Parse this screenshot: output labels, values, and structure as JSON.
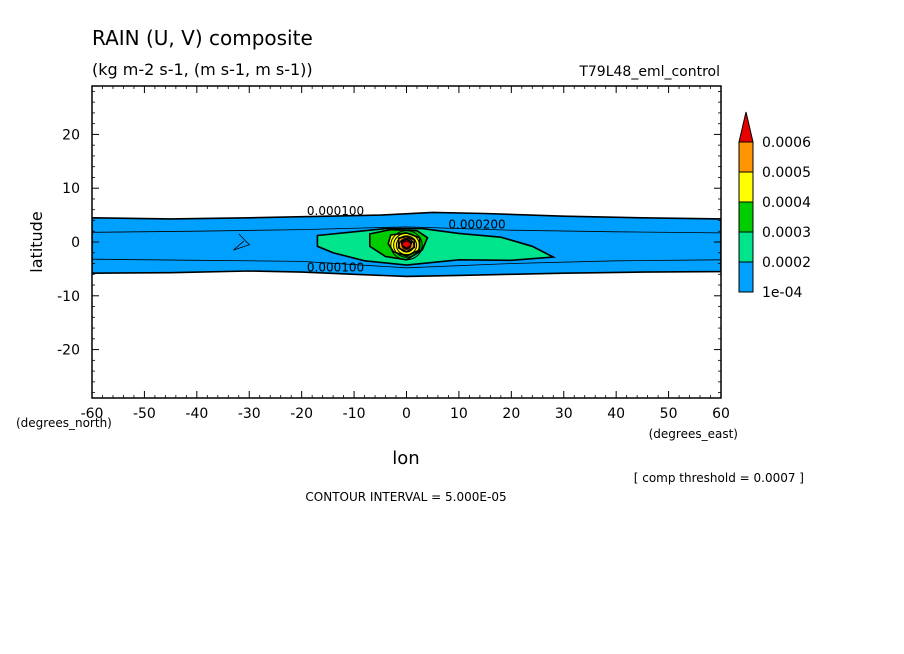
{
  "figure": {
    "title": "RAIN (U, V) composite",
    "units": "(kg m-2 s-1, (m s-1, m s-1))",
    "dataset": "T79L48_eml_control",
    "footnote": "[ comp threshold = 0.0007 ]",
    "contour_interval": "CONTOUR INTERVAL = 5.000E-05"
  },
  "chart_data": {
    "type": "heatmap",
    "title": "RAIN (U, V) composite",
    "xlabel": "lon",
    "ylabel": "latitude",
    "x_units": "(degrees_east)",
    "y_units": "(degrees_north)",
    "xlim": [
      -60,
      60
    ],
    "ylim": [
      -29,
      29
    ],
    "x_ticks": [
      -60,
      -50,
      -40,
      -30,
      -20,
      -10,
      0,
      10,
      20,
      30,
      40,
      50,
      60
    ],
    "y_ticks": [
      -20,
      -10,
      0,
      10,
      20
    ],
    "colorbar": {
      "levels": [
        "1e-04",
        "0.0002",
        "0.0003",
        "0.0004",
        "0.0005",
        "0.0006"
      ],
      "colors": [
        "#00a0ff",
        "#00e48c",
        "#00cd00",
        "#ffff00",
        "#ff9600",
        "#e60000"
      ],
      "extend_max": true
    },
    "contour_labels": [
      {
        "text": "0.000100",
        "lon": -19,
        "lat": 5
      },
      {
        "text": "0.000200",
        "lon": 8,
        "lat": 2.5
      },
      {
        "text": "0.000100",
        "lon": -19,
        "lat": -5.5
      }
    ],
    "filled_regions": [
      {
        "level": "1e-04",
        "polygon": [
          [
            -60,
            4.5
          ],
          [
            -45,
            4.3
          ],
          [
            -30,
            4.5
          ],
          [
            -15,
            4.8
          ],
          [
            -5,
            5
          ],
          [
            5,
            5.5
          ],
          [
            15,
            5.3
          ],
          [
            30,
            4.8
          ],
          [
            45,
            4.5
          ],
          [
            60,
            4.3
          ],
          [
            60,
            -5.5
          ],
          [
            45,
            -5.6
          ],
          [
            30,
            -5.8
          ],
          [
            20,
            -6
          ],
          [
            10,
            -6.2
          ],
          [
            0,
            -6.4
          ],
          [
            -10,
            -6
          ],
          [
            -20,
            -5.6
          ],
          [
            -30,
            -5.4
          ],
          [
            -45,
            -5.7
          ],
          [
            -60,
            -5.8
          ]
        ]
      },
      {
        "level": "0.0002",
        "polygon": [
          [
            -17,
            1.2
          ],
          [
            -10,
            1.9
          ],
          [
            -4,
            2.5
          ],
          [
            3,
            2.5
          ],
          [
            10,
            1.6
          ],
          [
            18,
            0.9
          ],
          [
            24,
            -0.8
          ],
          [
            28,
            -2.8
          ],
          [
            20,
            -3.4
          ],
          [
            10,
            -3.3
          ],
          [
            0,
            -4.3
          ],
          [
            -8,
            -3.5
          ],
          [
            -14,
            -2
          ],
          [
            -17,
            -0.8
          ]
        ]
      },
      {
        "level": "0.0003",
        "polygon": [
          [
            -7,
            1.5
          ],
          [
            -3,
            2.3
          ],
          [
            2,
            2.1
          ],
          [
            4,
            0.8
          ],
          [
            3,
            -1.5
          ],
          [
            0,
            -3.3
          ],
          [
            -4,
            -2.7
          ],
          [
            -7,
            -0.8
          ]
        ]
      },
      {
        "level": "0.0004",
        "polygon": [
          [
            -3,
            1.3
          ],
          [
            0,
            1.7
          ],
          [
            2.5,
            0.8
          ],
          [
            2.5,
            -1.5
          ],
          [
            0,
            -2.6
          ],
          [
            -2.5,
            -1.8
          ],
          [
            -3.5,
            -0.3
          ]
        ]
      },
      {
        "level": "0.0005",
        "polygon": [
          [
            -1.5,
            0.7
          ],
          [
            0,
            1
          ],
          [
            1.5,
            0.4
          ],
          [
            1.5,
            -1
          ],
          [
            0,
            -1.8
          ],
          [
            -1.5,
            -1.1
          ]
        ]
      },
      {
        "level": "0.0006",
        "polygon": [
          [
            -1,
            0.1
          ],
          [
            0,
            0.5
          ],
          [
            1,
            0
          ],
          [
            0.7,
            -0.8
          ],
          [
            0,
            -1.2
          ],
          [
            -0.8,
            -0.7
          ]
        ]
      }
    ]
  }
}
